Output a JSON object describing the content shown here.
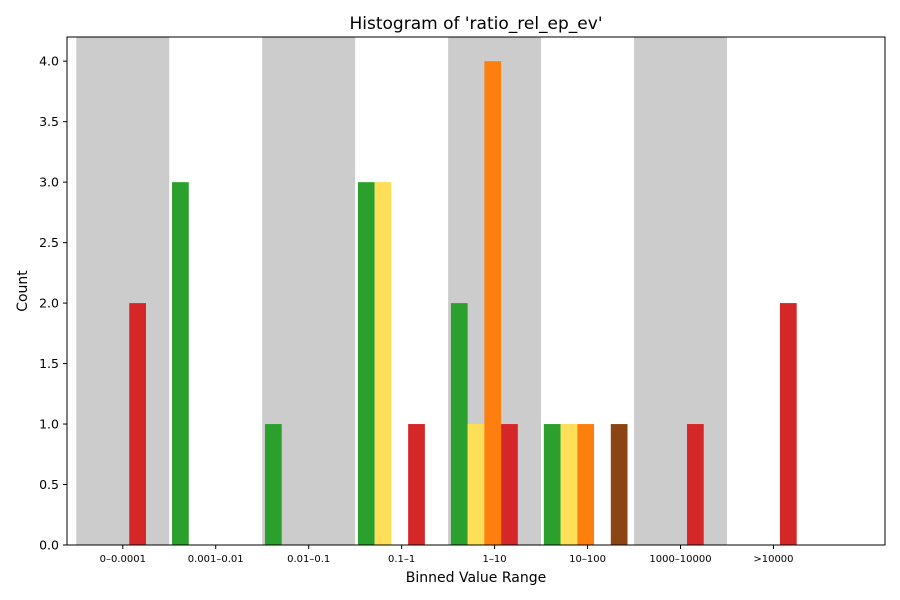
{
  "chart_data": {
    "type": "bar",
    "title": "Histogram of 'ratio_rel_ep_ev'",
    "xlabel": "Binned Value Range",
    "ylabel": "Count",
    "ylim": [
      0,
      4.2
    ],
    "yticks": [
      "0.0",
      "0.5",
      "1.0",
      "1.5",
      "2.0",
      "2.5",
      "3.0",
      "3.5",
      "4.0"
    ],
    "categories": [
      "0–0.0001",
      "0.001–0.01",
      "0.01–0.1",
      "0.1–1",
      "1–10",
      "10–100",
      "1000–10000",
      ">10000"
    ],
    "shaded_bands": [
      {
        "from_category": 0,
        "to_category": 0
      },
      {
        "from_category": 2,
        "to_category": 2
      },
      {
        "from_category": 4,
        "to_category": 4
      },
      {
        "from_category": 6,
        "to_category": 6
      }
    ],
    "shade_color": "#cccccc",
    "grid": false,
    "legend": "none",
    "bars": [
      {
        "x": 0.16,
        "value": 2,
        "color": "#d62728"
      },
      {
        "x": 0.62,
        "value": 3,
        "color": "#2ca02c"
      },
      {
        "x": 1.62,
        "value": 1,
        "color": "#2ca02c"
      },
      {
        "x": 2.62,
        "value": 3,
        "color": "#2ca02c"
      },
      {
        "x": 2.8,
        "value": 3,
        "color": "#ffdf57"
      },
      {
        "x": 3.16,
        "value": 1,
        "color": "#d62728"
      },
      {
        "x": 3.62,
        "value": 2,
        "color": "#2ca02c"
      },
      {
        "x": 3.8,
        "value": 1,
        "color": "#ffdf57"
      },
      {
        "x": 3.98,
        "value": 4,
        "color": "#ff7f0e"
      },
      {
        "x": 4.16,
        "value": 1,
        "color": "#d62728"
      },
      {
        "x": 4.62,
        "value": 1,
        "color": "#2ca02c"
      },
      {
        "x": 4.8,
        "value": 1,
        "color": "#ffdf57"
      },
      {
        "x": 4.98,
        "value": 1,
        "color": "#ff7f0e"
      },
      {
        "x": 5.34,
        "value": 1,
        "color": "#8b4513"
      },
      {
        "x": 6.16,
        "value": 1,
        "color": "#d62728"
      },
      {
        "x": 7.16,
        "value": 2,
        "color": "#d62728"
      }
    ]
  }
}
